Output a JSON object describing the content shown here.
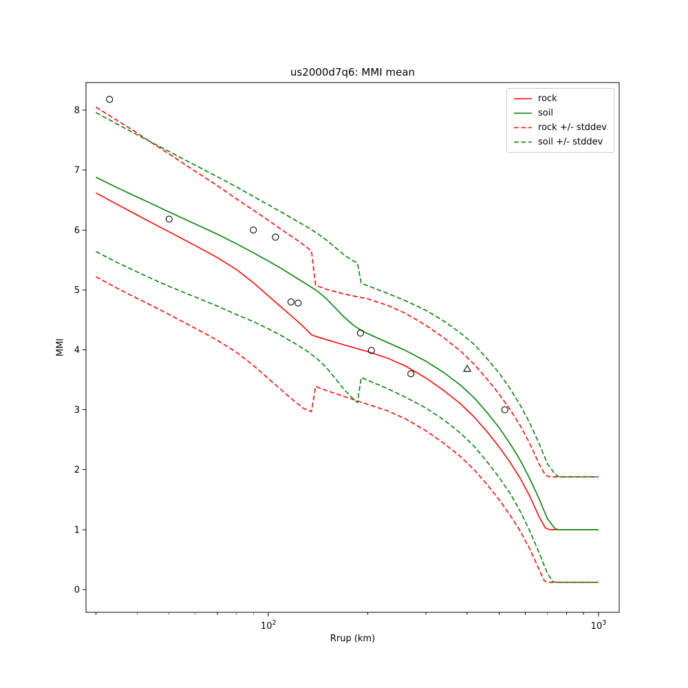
{
  "chart_data": {
    "type": "line",
    "title": "us2000d7q6: MMI mean",
    "xlabel": "Rrup (km)",
    "ylabel": "MMI",
    "xscale": "log",
    "xlim": [
      28,
      1155
    ],
    "ylim": [
      -0.38,
      8.46
    ],
    "yticks": [
      0,
      1,
      2,
      3,
      4,
      5,
      6,
      7,
      8
    ],
    "xticks_major": [
      100,
      1000
    ],
    "grid": false,
    "legend_position": "upper right",
    "colors": {
      "rock": "#ff0000",
      "soil": "#008000"
    },
    "series": [
      {
        "name": "rock",
        "color": "#ff0000",
        "style": "solid",
        "points": [
          [
            30,
            6.62
          ],
          [
            35,
            6.42
          ],
          [
            40,
            6.25
          ],
          [
            45,
            6.1
          ],
          [
            50,
            5.97
          ],
          [
            60,
            5.74
          ],
          [
            70,
            5.54
          ],
          [
            80,
            5.34
          ],
          [
            90,
            5.12
          ],
          [
            100,
            4.9
          ],
          [
            110,
            4.7
          ],
          [
            120,
            4.52
          ],
          [
            128,
            4.38
          ],
          [
            135,
            4.25
          ],
          [
            140,
            4.22
          ],
          [
            150,
            4.17
          ],
          [
            170,
            4.08
          ],
          [
            200,
            3.97
          ],
          [
            230,
            3.86
          ],
          [
            260,
            3.73
          ],
          [
            300,
            3.53
          ],
          [
            340,
            3.32
          ],
          [
            380,
            3.11
          ],
          [
            420,
            2.88
          ],
          [
            460,
            2.63
          ],
          [
            500,
            2.38
          ],
          [
            540,
            2.12
          ],
          [
            580,
            1.85
          ],
          [
            620,
            1.55
          ],
          [
            660,
            1.22
          ],
          [
            690,
            1.03
          ],
          [
            710,
            1.0
          ],
          [
            1000,
            1.0
          ]
        ]
      },
      {
        "name": "soil",
        "color": "#008000",
        "style": "solid",
        "points": [
          [
            30,
            6.88
          ],
          [
            35,
            6.7
          ],
          [
            40,
            6.55
          ],
          [
            45,
            6.42
          ],
          [
            50,
            6.3
          ],
          [
            60,
            6.1
          ],
          [
            70,
            5.93
          ],
          [
            80,
            5.77
          ],
          [
            90,
            5.62
          ],
          [
            100,
            5.48
          ],
          [
            110,
            5.35
          ],
          [
            120,
            5.22
          ],
          [
            130,
            5.1
          ],
          [
            140,
            4.99
          ],
          [
            150,
            4.85
          ],
          [
            160,
            4.69
          ],
          [
            170,
            4.54
          ],
          [
            180,
            4.42
          ],
          [
            190,
            4.33
          ],
          [
            200,
            4.27
          ],
          [
            230,
            4.12
          ],
          [
            260,
            3.99
          ],
          [
            300,
            3.81
          ],
          [
            340,
            3.62
          ],
          [
            380,
            3.42
          ],
          [
            420,
            3.2
          ],
          [
            460,
            2.95
          ],
          [
            500,
            2.7
          ],
          [
            540,
            2.43
          ],
          [
            580,
            2.15
          ],
          [
            620,
            1.84
          ],
          [
            660,
            1.52
          ],
          [
            700,
            1.18
          ],
          [
            740,
            1.01
          ],
          [
            760,
            1.0
          ],
          [
            1000,
            1.0
          ]
        ]
      },
      {
        "name": "rock +/- stddev",
        "color": "#ff0000",
        "style": "dashed",
        "points_upper": [
          [
            30,
            8.05
          ],
          [
            35,
            7.82
          ],
          [
            40,
            7.62
          ],
          [
            45,
            7.43
          ],
          [
            50,
            7.27
          ],
          [
            60,
            6.98
          ],
          [
            70,
            6.74
          ],
          [
            80,
            6.52
          ],
          [
            90,
            6.33
          ],
          [
            100,
            6.16
          ],
          [
            110,
            6.0
          ],
          [
            120,
            5.86
          ],
          [
            128,
            5.75
          ],
          [
            135,
            5.65
          ],
          [
            139,
            5.08
          ],
          [
            150,
            5.01
          ],
          [
            170,
            4.93
          ],
          [
            200,
            4.85
          ],
          [
            230,
            4.74
          ],
          [
            260,
            4.61
          ],
          [
            300,
            4.41
          ],
          [
            340,
            4.2
          ],
          [
            380,
            3.99
          ],
          [
            420,
            3.76
          ],
          [
            460,
            3.51
          ],
          [
            500,
            3.26
          ],
          [
            540,
            3.0
          ],
          [
            580,
            2.73
          ],
          [
            620,
            2.43
          ],
          [
            660,
            2.1
          ],
          [
            690,
            1.91
          ],
          [
            710,
            1.88
          ],
          [
            1000,
            1.88
          ]
        ],
        "points_lower": [
          [
            30,
            5.22
          ],
          [
            35,
            5.02
          ],
          [
            40,
            4.86
          ],
          [
            45,
            4.72
          ],
          [
            50,
            4.59
          ],
          [
            60,
            4.36
          ],
          [
            70,
            4.16
          ],
          [
            80,
            3.96
          ],
          [
            90,
            3.74
          ],
          [
            100,
            3.52
          ],
          [
            110,
            3.32
          ],
          [
            120,
            3.14
          ],
          [
            128,
            3.02
          ],
          [
            135,
            2.97
          ],
          [
            139,
            3.39
          ],
          [
            150,
            3.32
          ],
          [
            170,
            3.22
          ],
          [
            200,
            3.09
          ],
          [
            230,
            2.98
          ],
          [
            260,
            2.85
          ],
          [
            300,
            2.65
          ],
          [
            340,
            2.44
          ],
          [
            380,
            2.23
          ],
          [
            420,
            2.0
          ],
          [
            460,
            1.75
          ],
          [
            500,
            1.5
          ],
          [
            540,
            1.24
          ],
          [
            580,
            0.97
          ],
          [
            620,
            0.67
          ],
          [
            660,
            0.34
          ],
          [
            685,
            0.15
          ],
          [
            700,
            0.12
          ],
          [
            1000,
            0.12
          ]
        ]
      },
      {
        "name": "soil +/- stddev",
        "color": "#008000",
        "style": "dashed",
        "points_upper": [
          [
            30,
            7.96
          ],
          [
            35,
            7.76
          ],
          [
            40,
            7.59
          ],
          [
            45,
            7.44
          ],
          [
            50,
            7.31
          ],
          [
            60,
            7.08
          ],
          [
            70,
            6.89
          ],
          [
            80,
            6.72
          ],
          [
            90,
            6.56
          ],
          [
            100,
            6.42
          ],
          [
            110,
            6.29
          ],
          [
            120,
            6.17
          ],
          [
            130,
            6.06
          ],
          [
            140,
            5.95
          ],
          [
            150,
            5.83
          ],
          [
            160,
            5.7
          ],
          [
            170,
            5.58
          ],
          [
            180,
            5.49
          ],
          [
            186,
            5.45
          ],
          [
            191,
            5.11
          ],
          [
            200,
            5.07
          ],
          [
            230,
            4.94
          ],
          [
            260,
            4.82
          ],
          [
            300,
            4.66
          ],
          [
            340,
            4.48
          ],
          [
            380,
            4.29
          ],
          [
            420,
            4.09
          ],
          [
            460,
            3.85
          ],
          [
            500,
            3.61
          ],
          [
            540,
            3.35
          ],
          [
            580,
            3.07
          ],
          [
            620,
            2.77
          ],
          [
            660,
            2.44
          ],
          [
            700,
            2.1
          ],
          [
            740,
            1.92
          ],
          [
            760,
            1.88
          ],
          [
            1000,
            1.88
          ]
        ],
        "points_lower": [
          [
            30,
            5.64
          ],
          [
            35,
            5.45
          ],
          [
            40,
            5.3
          ],
          [
            45,
            5.17
          ],
          [
            50,
            5.06
          ],
          [
            60,
            4.88
          ],
          [
            70,
            4.73
          ],
          [
            80,
            4.59
          ],
          [
            90,
            4.47
          ],
          [
            100,
            4.35
          ],
          [
            110,
            4.23
          ],
          [
            120,
            4.11
          ],
          [
            130,
            3.99
          ],
          [
            140,
            3.86
          ],
          [
            150,
            3.7
          ],
          [
            160,
            3.51
          ],
          [
            170,
            3.33
          ],
          [
            180,
            3.19
          ],
          [
            186,
            3.12
          ],
          [
            191,
            3.54
          ],
          [
            200,
            3.49
          ],
          [
            230,
            3.35
          ],
          [
            260,
            3.21
          ],
          [
            300,
            3.03
          ],
          [
            340,
            2.83
          ],
          [
            380,
            2.62
          ],
          [
            420,
            2.39
          ],
          [
            460,
            2.13
          ],
          [
            500,
            1.87
          ],
          [
            540,
            1.6
          ],
          [
            580,
            1.3
          ],
          [
            620,
            0.97
          ],
          [
            660,
            0.62
          ],
          [
            700,
            0.27
          ],
          [
            728,
            0.13
          ],
          [
            745,
            0.12
          ],
          [
            1000,
            0.12
          ]
        ]
      }
    ],
    "scatter": {
      "circles": [
        [
          33,
          8.18
        ],
        [
          50,
          6.18
        ],
        [
          90,
          6.0
        ],
        [
          105,
          5.88
        ],
        [
          117,
          4.8
        ],
        [
          123,
          4.78
        ],
        [
          190,
          4.28
        ],
        [
          205,
          3.99
        ],
        [
          270,
          3.6
        ],
        [
          520,
          3.0
        ]
      ],
      "triangles": [
        [
          400,
          3.68
        ]
      ]
    }
  }
}
